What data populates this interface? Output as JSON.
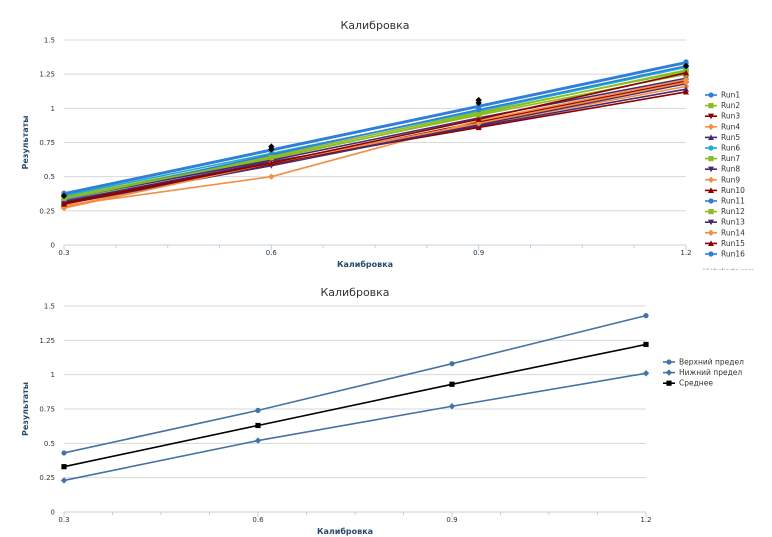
{
  "chart_data": [
    {
      "type": "line",
      "title": "Калибровка",
      "xlabel": "Калибровка",
      "ylabel": "Результаты",
      "x": [
        0.3,
        0.6,
        0.9,
        1.2
      ],
      "x_ticks": [
        "0.3",
        "0.6",
        "0.9",
        "1.2"
      ],
      "y_ticks": [
        "0",
        "0.25",
        "0.5",
        "0.75",
        "1",
        "1.25",
        "1.5"
      ],
      "ylim": [
        0,
        1.5
      ],
      "legend_position": "right",
      "credit": "Highcharts.com",
      "series": [
        {
          "name": "Run1",
          "color": "#2f7ed8",
          "marker": "circle",
          "values": [
            0.37,
            0.69,
            1.01,
            1.33
          ]
        },
        {
          "name": "Run2",
          "color": "#8bbc21",
          "marker": "square",
          "values": [
            0.33,
            0.63,
            0.96,
            1.28
          ]
        },
        {
          "name": "Run3",
          "color": "#910000",
          "marker": "triangle-down",
          "values": [
            0.3,
            0.59,
            0.9,
            1.2
          ]
        },
        {
          "name": "Run4",
          "color": "#f28f43",
          "marker": "diamond",
          "values": [
            0.28,
            0.6,
            0.88,
            1.16
          ]
        },
        {
          "name": "Run5",
          "color": "#492970",
          "marker": "triangle",
          "values": [
            0.32,
            0.61,
            0.87,
            1.14
          ]
        },
        {
          "name": "Run6",
          "color": "#1aadce",
          "marker": "circle",
          "values": [
            0.36,
            0.67,
            0.98,
            1.3
          ]
        },
        {
          "name": "Run7",
          "color": "#8bbc21",
          "marker": "square",
          "values": [
            0.35,
            0.65,
            0.97,
            1.27
          ]
        },
        {
          "name": "Run8",
          "color": "#492970",
          "marker": "triangle-down",
          "values": [
            0.34,
            0.62,
            0.93,
            1.22
          ]
        },
        {
          "name": "Run9",
          "color": "#f28f43",
          "marker": "diamond",
          "values": [
            0.29,
            0.5,
            0.91,
            1.21
          ]
        },
        {
          "name": "Run10",
          "color": "#910000",
          "marker": "triangle",
          "values": [
            0.31,
            0.6,
            0.86,
            1.12
          ]
        },
        {
          "name": "Run11",
          "color": "#2f7ed8",
          "marker": "circle",
          "values": [
            0.33,
            0.66,
            0.99,
            1.31
          ]
        },
        {
          "name": "Run12",
          "color": "#8bbc21",
          "marker": "square",
          "values": [
            0.34,
            0.64,
            0.95,
            1.25
          ]
        },
        {
          "name": "Run13",
          "color": "#492970",
          "marker": "triangle-down",
          "values": [
            0.3,
            0.58,
            0.88,
            1.18
          ]
        },
        {
          "name": "Run14",
          "color": "#f28f43",
          "marker": "diamond",
          "values": [
            0.27,
            0.6,
            0.89,
            1.19
          ]
        },
        {
          "name": "Run15",
          "color": "#910000",
          "marker": "triangle",
          "values": [
            0.3,
            0.6,
            0.92,
            1.26
          ]
        },
        {
          "name": "Run16",
          "color": "#2f7ed8",
          "marker": "circle",
          "values": [
            0.38,
            0.7,
            1.02,
            1.34
          ]
        }
      ],
      "extra_points": {
        "color": "#000000",
        "x": [
          0.3,
          0.6,
          0.6,
          0.9,
          0.9,
          1.2
        ],
        "values": [
          0.36,
          0.72,
          0.7,
          1.06,
          1.04,
          1.31
        ]
      }
    },
    {
      "type": "line",
      "title": "Калибровка",
      "xlabel": "Калибровка",
      "ylabel": "Результаты",
      "x": [
        0.3,
        0.6,
        0.9,
        1.2
      ],
      "x_ticks": [
        "0.3",
        "0.6",
        "0.9",
        "1.2"
      ],
      "y_ticks": [
        "0",
        "0.25",
        "0.5",
        "0.75",
        "1",
        "1.25",
        "1.5"
      ],
      "ylim": [
        0,
        1.5
      ],
      "legend_position": "right",
      "series": [
        {
          "name": "Верхний предел",
          "color": "#4572a7",
          "marker": "circle",
          "values": [
            0.43,
            0.74,
            1.08,
            1.43
          ]
        },
        {
          "name": "Нижний предел",
          "color": "#4572a7",
          "marker": "diamond",
          "values": [
            0.23,
            0.52,
            0.77,
            1.01
          ]
        },
        {
          "name": "Среднее",
          "color": "#000000",
          "marker": "square",
          "values": [
            0.33,
            0.63,
            0.93,
            1.22
          ]
        }
      ]
    }
  ]
}
